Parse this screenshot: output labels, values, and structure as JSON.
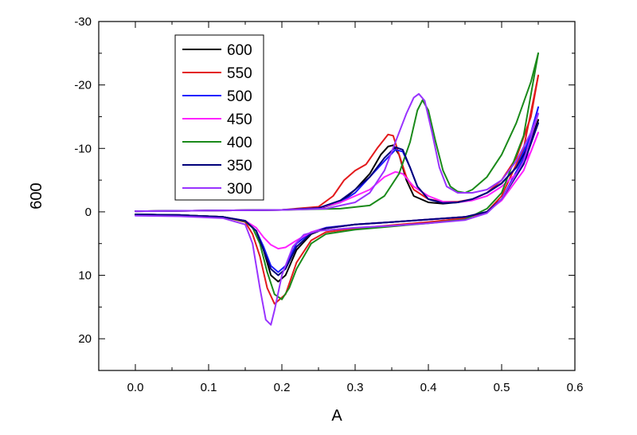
{
  "chart_data": {
    "type": "line",
    "title": "",
    "xlabel": "A",
    "ylabel": "600",
    "xlim": [
      -0.05,
      0.6
    ],
    "ylim": [
      -30,
      25
    ],
    "y_inverted": true,
    "xticks": [
      0.0,
      0.1,
      0.2,
      0.3,
      0.4,
      0.5,
      0.6
    ],
    "xtick_labels": [
      "0.0",
      "0.1",
      "0.2",
      "0.3",
      "0.4",
      "0.5",
      "0.6"
    ],
    "yticks": [
      -30,
      -20,
      -10,
      0,
      10,
      20
    ],
    "ytick_labels": [
      "-30",
      "-20",
      "-10",
      "0",
      "10",
      "20"
    ],
    "grid": false,
    "legend_position": "top-left",
    "series": [
      {
        "name": "600",
        "color": "#000000",
        "forward": [
          [
            0.0,
            -0.1
          ],
          [
            0.1,
            -0.2
          ],
          [
            0.2,
            -0.3
          ],
          [
            0.25,
            -0.5
          ],
          [
            0.28,
            -1.5
          ],
          [
            0.3,
            -3.5
          ],
          [
            0.32,
            -6.0
          ],
          [
            0.335,
            -9.0
          ],
          [
            0.345,
            -10.3
          ],
          [
            0.352,
            -10.5
          ],
          [
            0.36,
            -9.0
          ],
          [
            0.37,
            -5.0
          ],
          [
            0.38,
            -2.5
          ],
          [
            0.4,
            -1.5
          ],
          [
            0.42,
            -1.3
          ],
          [
            0.44,
            -1.5
          ],
          [
            0.46,
            -2.0
          ],
          [
            0.48,
            -3.0
          ],
          [
            0.5,
            -4.5
          ],
          [
            0.52,
            -7.0
          ],
          [
            0.54,
            -11.0
          ],
          [
            0.55,
            -14.5
          ]
        ],
        "reverse": [
          [
            0.55,
            -14.5
          ],
          [
            0.53,
            -8.0
          ],
          [
            0.5,
            -2.0
          ],
          [
            0.48,
            0.0
          ],
          [
            0.45,
            0.8
          ],
          [
            0.4,
            1.2
          ],
          [
            0.35,
            1.6
          ],
          [
            0.3,
            2.0
          ],
          [
            0.26,
            2.6
          ],
          [
            0.24,
            3.5
          ],
          [
            0.22,
            6.0
          ],
          [
            0.205,
            10.0
          ],
          [
            0.195,
            11.0
          ],
          [
            0.185,
            10.0
          ],
          [
            0.175,
            6.0
          ],
          [
            0.165,
            3.0
          ],
          [
            0.15,
            1.5
          ],
          [
            0.12,
            0.8
          ],
          [
            0.06,
            0.5
          ],
          [
            0.0,
            0.4
          ]
        ]
      },
      {
        "name": "550",
        "color": "#e31a1c",
        "forward": [
          [
            0.0,
            -0.1
          ],
          [
            0.1,
            -0.2
          ],
          [
            0.2,
            -0.3
          ],
          [
            0.25,
            -0.8
          ],
          [
            0.27,
            -2.5
          ],
          [
            0.285,
            -5.0
          ],
          [
            0.3,
            -6.5
          ],
          [
            0.315,
            -7.5
          ],
          [
            0.33,
            -10.0
          ],
          [
            0.345,
            -12.2
          ],
          [
            0.352,
            -12.0
          ],
          [
            0.36,
            -9.0
          ],
          [
            0.37,
            -5.5
          ],
          [
            0.38,
            -3.5
          ],
          [
            0.4,
            -2.0
          ],
          [
            0.42,
            -1.6
          ],
          [
            0.44,
            -1.6
          ],
          [
            0.46,
            -2.0
          ],
          [
            0.48,
            -3.0
          ],
          [
            0.5,
            -5.0
          ],
          [
            0.52,
            -8.5
          ],
          [
            0.54,
            -15.0
          ],
          [
            0.55,
            -21.5
          ]
        ],
        "reverse": [
          [
            0.55,
            -21.5
          ],
          [
            0.53,
            -10.0
          ],
          [
            0.5,
            -2.5
          ],
          [
            0.48,
            0.0
          ],
          [
            0.45,
            1.0
          ],
          [
            0.4,
            1.6
          ],
          [
            0.35,
            2.1
          ],
          [
            0.3,
            2.6
          ],
          [
            0.26,
            3.2
          ],
          [
            0.24,
            4.5
          ],
          [
            0.22,
            8.0
          ],
          [
            0.205,
            13.0
          ],
          [
            0.19,
            14.5
          ],
          [
            0.18,
            12.0
          ],
          [
            0.17,
            7.0
          ],
          [
            0.16,
            3.5
          ],
          [
            0.15,
            1.6
          ],
          [
            0.12,
            0.8
          ],
          [
            0.06,
            0.5
          ],
          [
            0.0,
            0.4
          ]
        ]
      },
      {
        "name": "500",
        "color": "#1a1aff",
        "forward": [
          [
            0.0,
            -0.1
          ],
          [
            0.1,
            -0.2
          ],
          [
            0.2,
            -0.3
          ],
          [
            0.25,
            -0.6
          ],
          [
            0.28,
            -1.5
          ],
          [
            0.3,
            -3.0
          ],
          [
            0.32,
            -5.5
          ],
          [
            0.34,
            -8.0
          ],
          [
            0.355,
            -9.8
          ],
          [
            0.365,
            -9.5
          ],
          [
            0.375,
            -7.0
          ],
          [
            0.385,
            -4.0
          ],
          [
            0.4,
            -2.0
          ],
          [
            0.42,
            -1.4
          ],
          [
            0.44,
            -1.5
          ],
          [
            0.46,
            -2.0
          ],
          [
            0.48,
            -3.0
          ],
          [
            0.5,
            -4.5
          ],
          [
            0.52,
            -7.0
          ],
          [
            0.54,
            -12.0
          ],
          [
            0.55,
            -16.5
          ]
        ],
        "reverse": [
          [
            0.55,
            -16.5
          ],
          [
            0.53,
            -8.5
          ],
          [
            0.5,
            -2.0
          ],
          [
            0.48,
            0.0
          ],
          [
            0.45,
            0.8
          ],
          [
            0.4,
            1.2
          ],
          [
            0.35,
            1.6
          ],
          [
            0.3,
            2.0
          ],
          [
            0.26,
            2.5
          ],
          [
            0.24,
            3.2
          ],
          [
            0.22,
            5.0
          ],
          [
            0.205,
            8.5
          ],
          [
            0.195,
            9.5
          ],
          [
            0.185,
            8.5
          ],
          [
            0.175,
            5.5
          ],
          [
            0.165,
            3.0
          ],
          [
            0.15,
            1.4
          ],
          [
            0.12,
            0.8
          ],
          [
            0.06,
            0.5
          ],
          [
            0.0,
            0.4
          ]
        ]
      },
      {
        "name": "450",
        "color": "#ff22ff",
        "forward": [
          [
            0.0,
            -0.1
          ],
          [
            0.1,
            -0.2
          ],
          [
            0.2,
            -0.3
          ],
          [
            0.25,
            -0.6
          ],
          [
            0.28,
            -1.5
          ],
          [
            0.3,
            -2.5
          ],
          [
            0.32,
            -3.5
          ],
          [
            0.34,
            -5.5
          ],
          [
            0.355,
            -6.3
          ],
          [
            0.365,
            -6.0
          ],
          [
            0.38,
            -4.0
          ],
          [
            0.4,
            -2.5
          ],
          [
            0.42,
            -1.6
          ],
          [
            0.44,
            -1.5
          ],
          [
            0.46,
            -1.8
          ],
          [
            0.48,
            -2.5
          ],
          [
            0.5,
            -4.0
          ],
          [
            0.52,
            -6.0
          ],
          [
            0.54,
            -9.5
          ],
          [
            0.55,
            -12.5
          ]
        ],
        "reverse": [
          [
            0.55,
            -12.5
          ],
          [
            0.53,
            -6.5
          ],
          [
            0.5,
            -1.8
          ],
          [
            0.48,
            0.0
          ],
          [
            0.45,
            0.8
          ],
          [
            0.4,
            1.2
          ],
          [
            0.35,
            1.6
          ],
          [
            0.3,
            2.0
          ],
          [
            0.26,
            2.6
          ],
          [
            0.24,
            3.2
          ],
          [
            0.22,
            4.5
          ],
          [
            0.205,
            5.6
          ],
          [
            0.195,
            5.8
          ],
          [
            0.185,
            5.2
          ],
          [
            0.175,
            4.0
          ],
          [
            0.165,
            2.5
          ],
          [
            0.15,
            1.4
          ],
          [
            0.12,
            0.8
          ],
          [
            0.06,
            0.5
          ],
          [
            0.0,
            0.4
          ]
        ]
      },
      {
        "name": "400",
        "color": "#1a8a1a",
        "forward": [
          [
            0.0,
            -0.1
          ],
          [
            0.1,
            -0.2
          ],
          [
            0.2,
            -0.3
          ],
          [
            0.28,
            -0.5
          ],
          [
            0.32,
            -1.0
          ],
          [
            0.34,
            -2.5
          ],
          [
            0.36,
            -6.0
          ],
          [
            0.375,
            -11.0
          ],
          [
            0.385,
            -16.0
          ],
          [
            0.392,
            -17.6
          ],
          [
            0.4,
            -16.0
          ],
          [
            0.41,
            -11.0
          ],
          [
            0.42,
            -6.5
          ],
          [
            0.43,
            -4.0
          ],
          [
            0.44,
            -3.2
          ],
          [
            0.45,
            -3.0
          ],
          [
            0.46,
            -3.5
          ],
          [
            0.48,
            -5.5
          ],
          [
            0.5,
            -9.0
          ],
          [
            0.52,
            -14.0
          ],
          [
            0.54,
            -20.5
          ],
          [
            0.55,
            -25.0
          ]
        ],
        "reverse": [
          [
            0.55,
            -25.0
          ],
          [
            0.53,
            -12.0
          ],
          [
            0.5,
            -3.0
          ],
          [
            0.48,
            -0.5
          ],
          [
            0.45,
            1.2
          ],
          [
            0.4,
            1.8
          ],
          [
            0.35,
            2.3
          ],
          [
            0.3,
            2.8
          ],
          [
            0.26,
            3.5
          ],
          [
            0.24,
            5.0
          ],
          [
            0.22,
            9.0
          ],
          [
            0.21,
            12.0
          ],
          [
            0.2,
            13.8
          ],
          [
            0.19,
            13.0
          ],
          [
            0.18,
            9.5
          ],
          [
            0.17,
            5.0
          ],
          [
            0.16,
            2.5
          ],
          [
            0.15,
            1.5
          ],
          [
            0.12,
            0.8
          ],
          [
            0.06,
            0.5
          ],
          [
            0.0,
            0.4
          ]
        ]
      },
      {
        "name": "350",
        "color": "#00007a",
        "forward": [
          [
            0.0,
            -0.1
          ],
          [
            0.1,
            -0.2
          ],
          [
            0.2,
            -0.3
          ],
          [
            0.25,
            -0.6
          ],
          [
            0.28,
            -1.8
          ],
          [
            0.3,
            -3.5
          ],
          [
            0.32,
            -5.5
          ],
          [
            0.34,
            -8.5
          ],
          [
            0.355,
            -10.2
          ],
          [
            0.365,
            -9.8
          ],
          [
            0.375,
            -7.0
          ],
          [
            0.385,
            -4.0
          ],
          [
            0.4,
            -2.0
          ],
          [
            0.42,
            -1.4
          ],
          [
            0.44,
            -1.5
          ],
          [
            0.46,
            -2.0
          ],
          [
            0.48,
            -3.0
          ],
          [
            0.5,
            -4.5
          ],
          [
            0.52,
            -7.0
          ],
          [
            0.54,
            -11.0
          ],
          [
            0.55,
            -14.0
          ]
        ],
        "reverse": [
          [
            0.55,
            -14.0
          ],
          [
            0.53,
            -7.5
          ],
          [
            0.5,
            -2.0
          ],
          [
            0.48,
            0.0
          ],
          [
            0.45,
            0.8
          ],
          [
            0.4,
            1.2
          ],
          [
            0.35,
            1.6
          ],
          [
            0.3,
            2.0
          ],
          [
            0.26,
            2.6
          ],
          [
            0.24,
            3.4
          ],
          [
            0.22,
            5.5
          ],
          [
            0.205,
            9.0
          ],
          [
            0.195,
            10.0
          ],
          [
            0.185,
            9.0
          ],
          [
            0.175,
            6.0
          ],
          [
            0.165,
            3.0
          ],
          [
            0.15,
            1.4
          ],
          [
            0.12,
            0.8
          ],
          [
            0.06,
            0.5
          ],
          [
            0.0,
            0.4
          ]
        ]
      },
      {
        "name": "300",
        "color": "#9933ff",
        "forward": [
          [
            0.0,
            -0.1
          ],
          [
            0.1,
            -0.2
          ],
          [
            0.2,
            -0.3
          ],
          [
            0.26,
            -0.5
          ],
          [
            0.3,
            -1.5
          ],
          [
            0.32,
            -3.0
          ],
          [
            0.34,
            -6.5
          ],
          [
            0.355,
            -11.0
          ],
          [
            0.37,
            -15.5
          ],
          [
            0.38,
            -18.0
          ],
          [
            0.387,
            -18.6
          ],
          [
            0.395,
            -17.5
          ],
          [
            0.405,
            -12.5
          ],
          [
            0.415,
            -7.0
          ],
          [
            0.425,
            -4.0
          ],
          [
            0.44,
            -3.0
          ],
          [
            0.46,
            -3.0
          ],
          [
            0.48,
            -3.5
          ],
          [
            0.5,
            -5.0
          ],
          [
            0.52,
            -8.0
          ],
          [
            0.54,
            -12.5
          ],
          [
            0.55,
            -15.5
          ]
        ],
        "reverse": [
          [
            0.55,
            -15.5
          ],
          [
            0.53,
            -8.0
          ],
          [
            0.5,
            -2.0
          ],
          [
            0.48,
            0.2
          ],
          [
            0.45,
            1.3
          ],
          [
            0.4,
            1.8
          ],
          [
            0.35,
            2.2
          ],
          [
            0.3,
            2.5
          ],
          [
            0.25,
            3.0
          ],
          [
            0.23,
            3.6
          ],
          [
            0.215,
            5.5
          ],
          [
            0.2,
            10.0
          ],
          [
            0.19,
            15.5
          ],
          [
            0.185,
            17.8
          ],
          [
            0.178,
            17.0
          ],
          [
            0.17,
            12.0
          ],
          [
            0.16,
            5.0
          ],
          [
            0.15,
            2.0
          ],
          [
            0.12,
            1.0
          ],
          [
            0.06,
            0.7
          ],
          [
            0.0,
            0.6
          ]
        ]
      }
    ]
  }
}
